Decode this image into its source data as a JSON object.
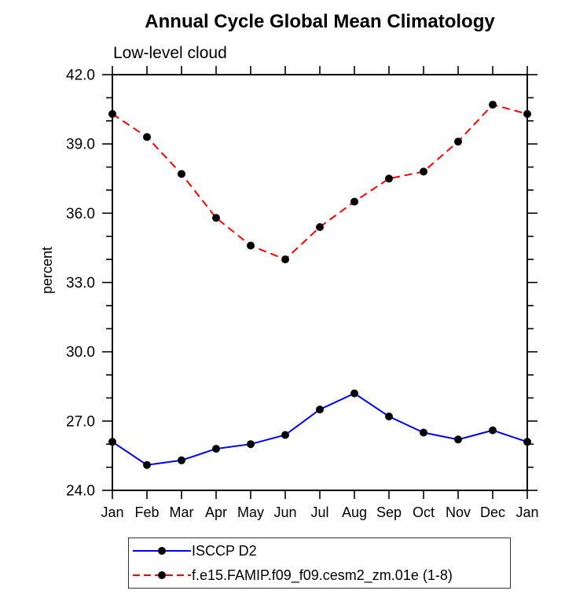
{
  "title": "Annual Cycle Global Mean Climatology",
  "subtitle": "Low-level cloud",
  "ylabel": "percent",
  "colors": {
    "axis": "#000000",
    "marker": "#000000",
    "series1": "#0000ff",
    "series2": "#ff0000"
  },
  "legend": {
    "items": [
      {
        "label": "ISCCP D2",
        "color": "#0000ff",
        "style": "solid"
      },
      {
        "label": "f.e15.FAMIP.f09_f09.cesm2_zm.01e (1-8)",
        "color": "#ff0000",
        "style": "dashed"
      }
    ]
  },
  "chart_data": {
    "type": "line",
    "title": "Annual Cycle Global Mean Climatology",
    "subtitle": "Low-level cloud",
    "xlabel": "",
    "ylabel": "percent",
    "categories": [
      "Jan",
      "Feb",
      "Mar",
      "Apr",
      "May",
      "Jun",
      "Jul",
      "Aug",
      "Sep",
      "Oct",
      "Nov",
      "Dec",
      "Jan"
    ],
    "series": [
      {
        "name": "ISCCP D2",
        "color": "#0000ff",
        "dash": "solid",
        "marker": "filled-circle",
        "values": [
          26.1,
          25.1,
          25.3,
          25.8,
          26.0,
          26.4,
          27.5,
          28.2,
          27.2,
          26.5,
          26.2,
          26.6,
          26.1
        ]
      },
      {
        "name": "f.e15.FAMIP.f09_f09.cesm2_zm.01e (1-8)",
        "color": "#ff0000",
        "dash": "dashed",
        "marker": "filled-circle",
        "values": [
          40.3,
          39.3,
          37.7,
          35.8,
          34.6,
          34.0,
          35.4,
          36.5,
          37.5,
          37.8,
          39.1,
          40.7,
          40.3
        ]
      }
    ],
    "ylim": [
      24.0,
      42.0
    ],
    "y_major_ticks": [
      24,
      27,
      30,
      33,
      36,
      39,
      42
    ],
    "y_tick_labels": [
      "24.0",
      "27.0",
      "30.0",
      "33.0",
      "36.0",
      "39.0",
      "42.0"
    ],
    "y_minor_step": 1.0,
    "marker_color": "#000000",
    "grid": false,
    "frame": "box-with-outward-ticks",
    "legend_position": "bottom"
  }
}
